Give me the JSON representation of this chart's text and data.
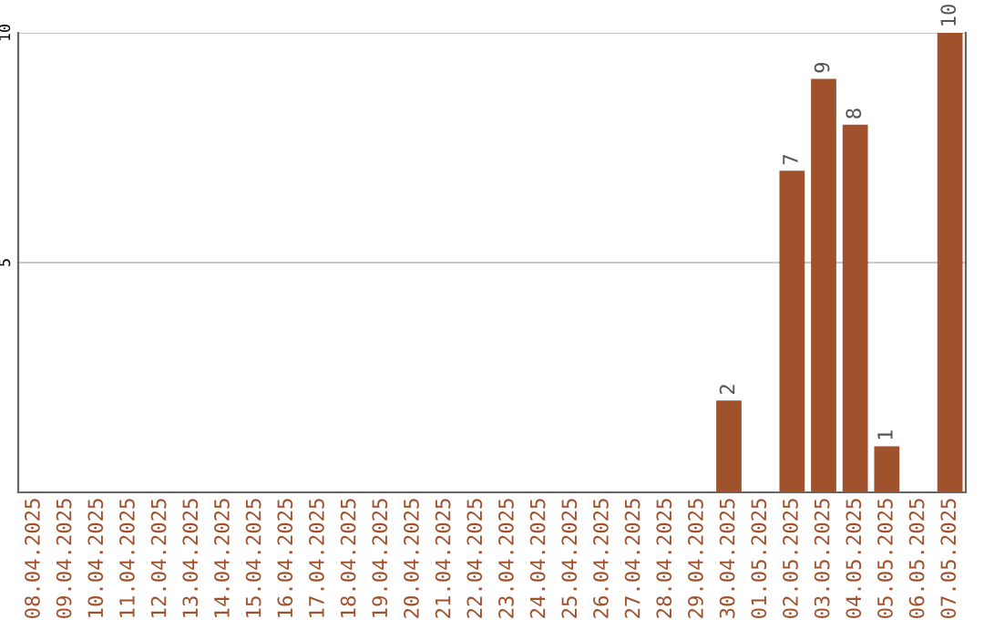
{
  "chart_data": {
    "type": "bar",
    "categories": [
      "08.04.2025",
      "09.04.2025",
      "10.04.2025",
      "11.04.2025",
      "12.04.2025",
      "13.04.2025",
      "14.04.2025",
      "15.04.2025",
      "16.04.2025",
      "17.04.2025",
      "18.04.2025",
      "19.04.2025",
      "20.04.2025",
      "21.04.2025",
      "22.04.2025",
      "23.04.2025",
      "24.04.2025",
      "25.04.2025",
      "26.04.2025",
      "27.04.2025",
      "28.04.2025",
      "29.04.2025",
      "30.04.2025",
      "01.05.2025",
      "02.05.2025",
      "03.05.2025",
      "04.05.2025",
      "05.05.2025",
      "06.05.2025",
      "07.05.2025"
    ],
    "values": [
      0,
      0,
      0,
      0,
      0,
      0,
      0,
      0,
      0,
      0,
      0,
      0,
      0,
      0,
      0,
      0,
      0,
      0,
      0,
      0,
      0,
      0,
      2,
      0,
      7,
      9,
      8,
      1,
      0,
      10
    ],
    "value_labels": [
      null,
      null,
      null,
      null,
      null,
      null,
      null,
      null,
      null,
      null,
      null,
      null,
      null,
      null,
      null,
      null,
      null,
      null,
      null,
      null,
      null,
      null,
      "2",
      null,
      "7",
      "9",
      "8",
      "1",
      null,
      "10"
    ],
    "color": "#a0522d",
    "ylim": [
      0,
      10
    ],
    "yticks": [
      5,
      10
    ],
    "grid": "y"
  }
}
